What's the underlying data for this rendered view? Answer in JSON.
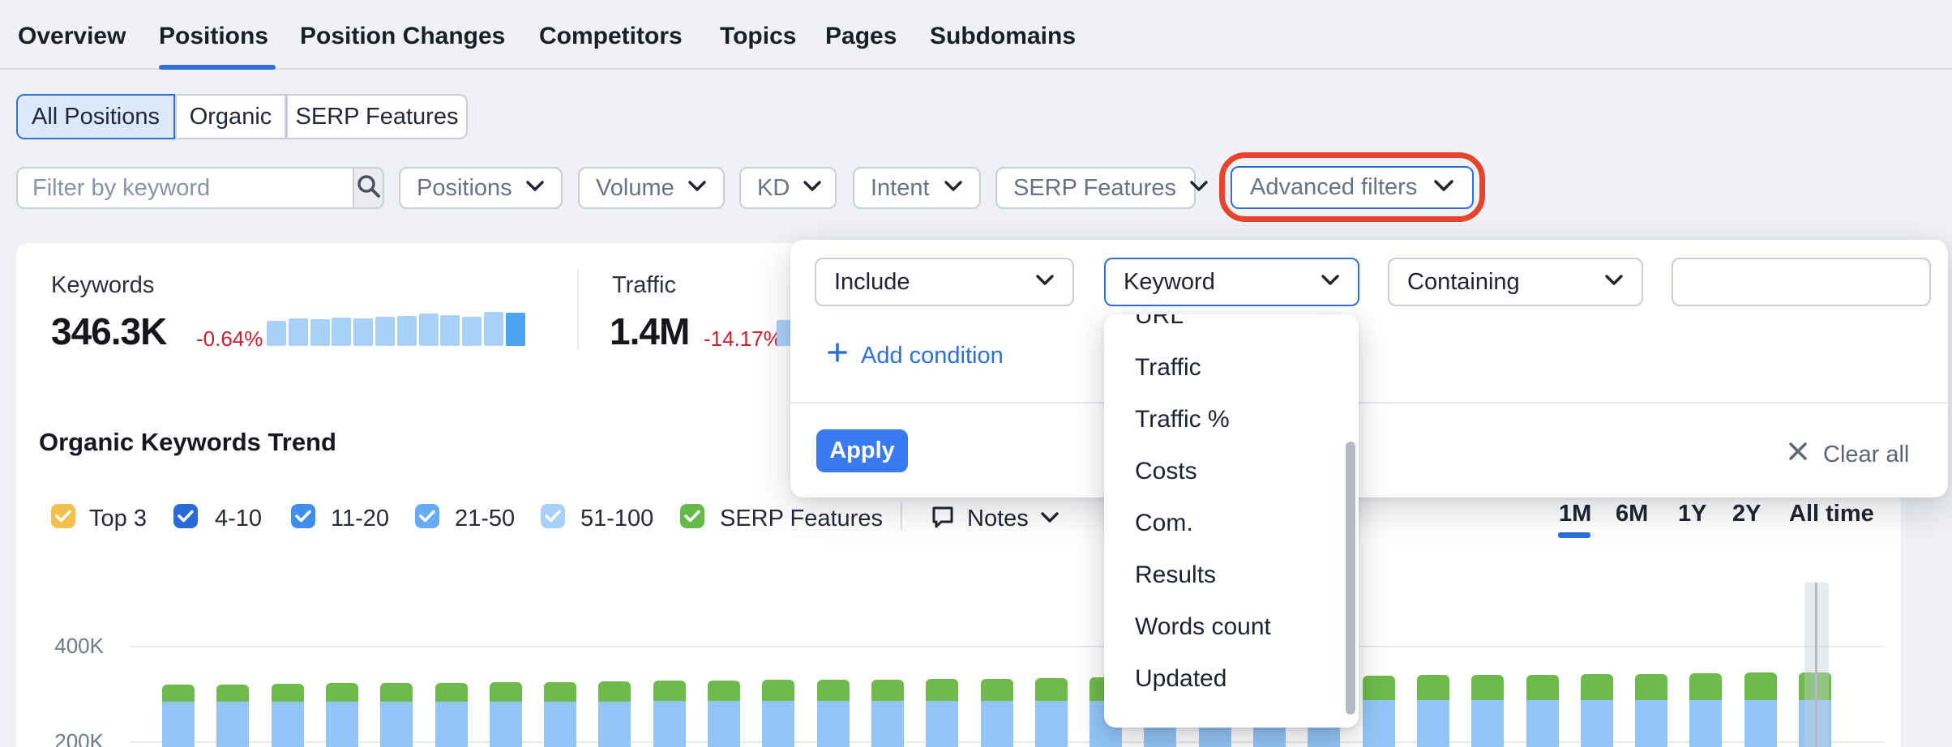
{
  "nav": {
    "items": [
      {
        "label": "Overview",
        "active": false
      },
      {
        "label": "Positions",
        "active": true
      },
      {
        "label": "Position Changes",
        "active": false
      },
      {
        "label": "Competitors",
        "active": false
      },
      {
        "label": "Topics",
        "active": false
      },
      {
        "label": "Pages",
        "active": false
      },
      {
        "label": "Subdomains",
        "active": false
      }
    ]
  },
  "view_tabs": {
    "options": [
      {
        "label": "All Positions",
        "selected": true
      },
      {
        "label": "Organic",
        "selected": false
      },
      {
        "label": "SERP Features",
        "selected": false
      }
    ]
  },
  "filter_bar": {
    "keyword_placeholder": "Filter by keyword",
    "dropdowns": [
      {
        "label": "Positions"
      },
      {
        "label": "Volume"
      },
      {
        "label": "KD"
      },
      {
        "label": "Intent"
      },
      {
        "label": "SERP Features"
      }
    ],
    "advanced_filters_label": "Advanced filters"
  },
  "stats": {
    "keywords": {
      "label": "Keywords",
      "value": "346.3K",
      "change": "-0.64%",
      "spark_values": [
        31,
        34,
        33,
        35,
        34,
        36,
        37,
        40,
        38,
        36,
        42,
        41
      ]
    },
    "traffic": {
      "label": "Traffic",
      "value": "1.4M",
      "change": "-14.17%",
      "spark_values": [
        32
      ]
    }
  },
  "advanced_panel": {
    "operator": "Include",
    "field": "Keyword",
    "match": "Containing",
    "value_input": "",
    "add_condition_label": "Add condition",
    "apply_label": "Apply",
    "clear_all_label": "Clear all",
    "field_options": [
      "URL",
      "Traffic",
      "Traffic %",
      "Costs",
      "Com.",
      "Results",
      "Words count",
      "Updated"
    ]
  },
  "trend": {
    "title": "Organic Keywords Trend",
    "legend": [
      {
        "label": "Top 3",
        "color": "#F2C14D",
        "checked": true
      },
      {
        "label": "4-10",
        "color": "#2A69D8",
        "checked": true
      },
      {
        "label": "11-20",
        "color": "#3F8EEE",
        "checked": true
      },
      {
        "label": "21-50",
        "color": "#66ACF4",
        "checked": true
      },
      {
        "label": "51-100",
        "color": "#A7D1F8",
        "checked": true
      },
      {
        "label": "SERP Features",
        "color": "#63BA49",
        "checked": true
      }
    ],
    "notes_label": "Notes",
    "ranges": [
      {
        "label": "1M",
        "active": true
      },
      {
        "label": "6M",
        "active": false
      },
      {
        "label": "1Y",
        "active": false
      },
      {
        "label": "2Y",
        "active": false
      },
      {
        "label": "All time",
        "active": false
      }
    ]
  },
  "colors": {
    "accent_blue": "#2F6FDB",
    "link_blue": "#2E6FDD",
    "apply_blue": "#3A7AF0",
    "negative_red": "#CB1F2E",
    "annotation_red": "#E8432C",
    "spark_bar": "#A9D0F8",
    "spark_bar_current": "#4DA3F0",
    "chart_blue": "#93C6F6",
    "chart_green": "#6FBA4C"
  },
  "chart_data": {
    "type": "bar",
    "stacked": true,
    "title": "Organic Keywords Trend",
    "unit": "K keywords",
    "yticks": [
      {
        "label": "400K",
        "value": 400
      },
      {
        "label": "200K",
        "value": 200
      }
    ],
    "ylim": [
      0,
      450
    ],
    "grid": true,
    "x_labels": [],
    "hover_index": 30,
    "series": [
      {
        "name": "Organic positions (blue)",
        "color": "#93C6F6",
        "values": [
          284,
          284,
          284,
          284,
          285,
          285,
          285,
          285,
          285,
          286,
          286,
          286,
          286,
          286,
          286,
          287,
          287,
          287,
          287,
          287,
          287,
          287,
          288,
          288,
          288,
          288,
          288,
          288,
          288,
          288,
          288
        ]
      },
      {
        "name": "SERP Features (green)",
        "color": "#6FBA4C",
        "values": [
          36,
          37,
          38,
          39,
          38,
          39,
          40,
          41,
          42,
          42,
          43,
          44,
          44,
          45,
          46,
          46,
          47,
          48,
          49,
          49,
          50,
          51,
          51,
          52,
          53,
          53,
          54,
          55,
          56,
          57,
          58
        ]
      }
    ]
  }
}
